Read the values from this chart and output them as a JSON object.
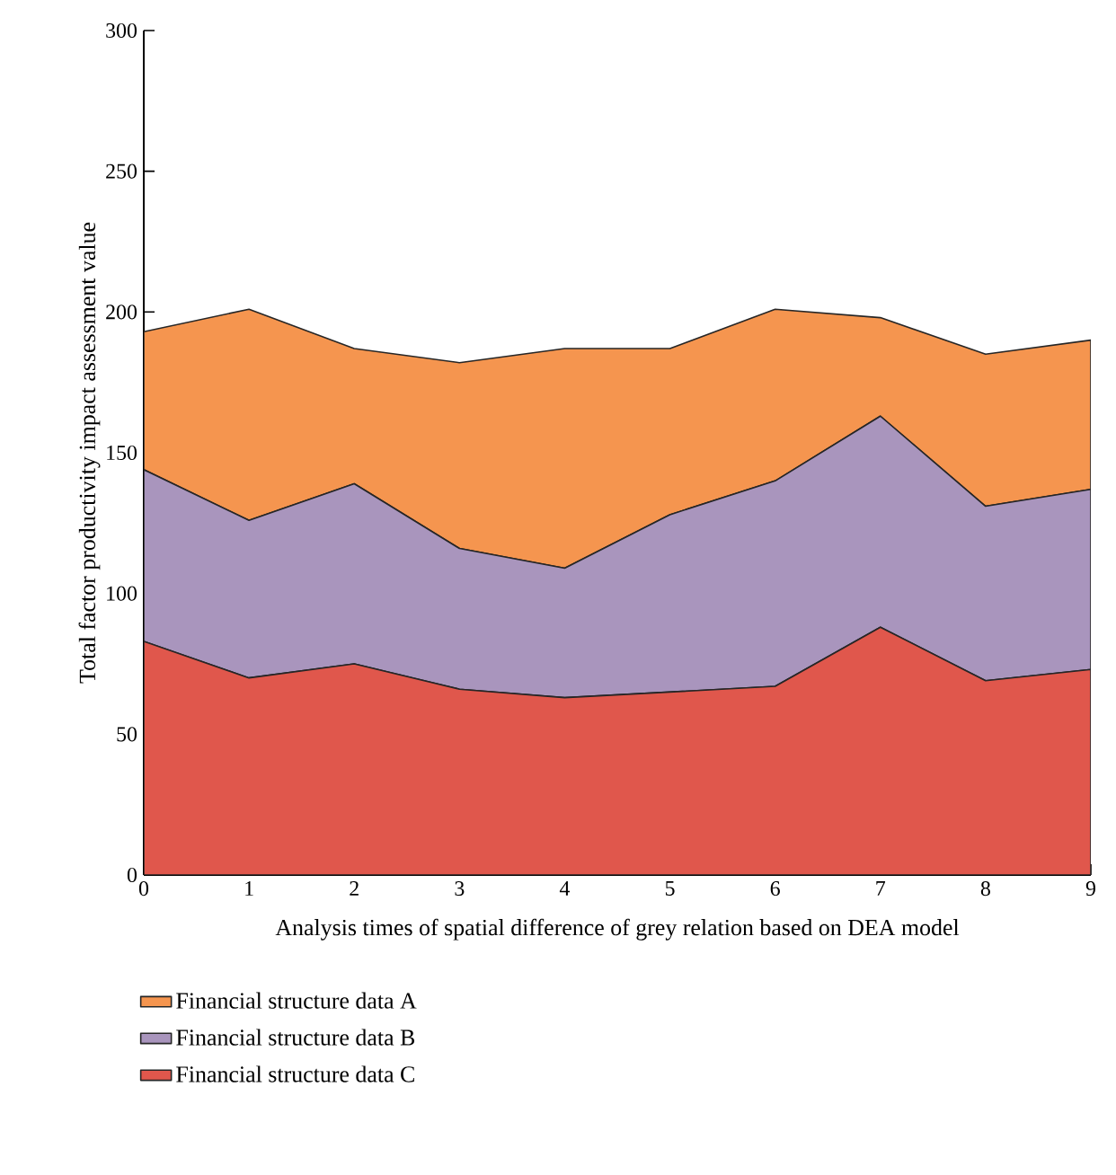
{
  "chart_data": {
    "type": "area",
    "stacked": true,
    "xlabel": "Analysis times of spatial difference of grey relation based on DEA model",
    "ylabel": "Total factor productivity impact assessment value",
    "x": [
      0,
      1,
      2,
      3,
      4,
      5,
      6,
      7,
      8,
      9
    ],
    "xlim": [
      0,
      9
    ],
    "xticks": [
      0,
      1,
      2,
      3,
      4,
      5,
      6,
      7,
      8,
      9
    ],
    "ylim": [
      0,
      300
    ],
    "yticks": [
      0,
      50,
      100,
      150,
      200,
      250,
      300
    ],
    "series": [
      {
        "name": "Financial structure data C",
        "color": "#e0574c",
        "values": [
          83,
          70,
          75,
          66,
          63,
          65,
          67,
          88,
          69,
          73
        ]
      },
      {
        "name": "Financial structure data B",
        "color": "#a995bd",
        "values": [
          61,
          56,
          64,
          50,
          46,
          63,
          73,
          75,
          62,
          64
        ]
      },
      {
        "name": "Financial structure data A",
        "color": "#f5954f",
        "values": [
          49,
          75,
          48,
          66,
          78,
          59,
          61,
          35,
          54,
          53
        ]
      }
    ],
    "legend": "bottom",
    "grid": false
  }
}
